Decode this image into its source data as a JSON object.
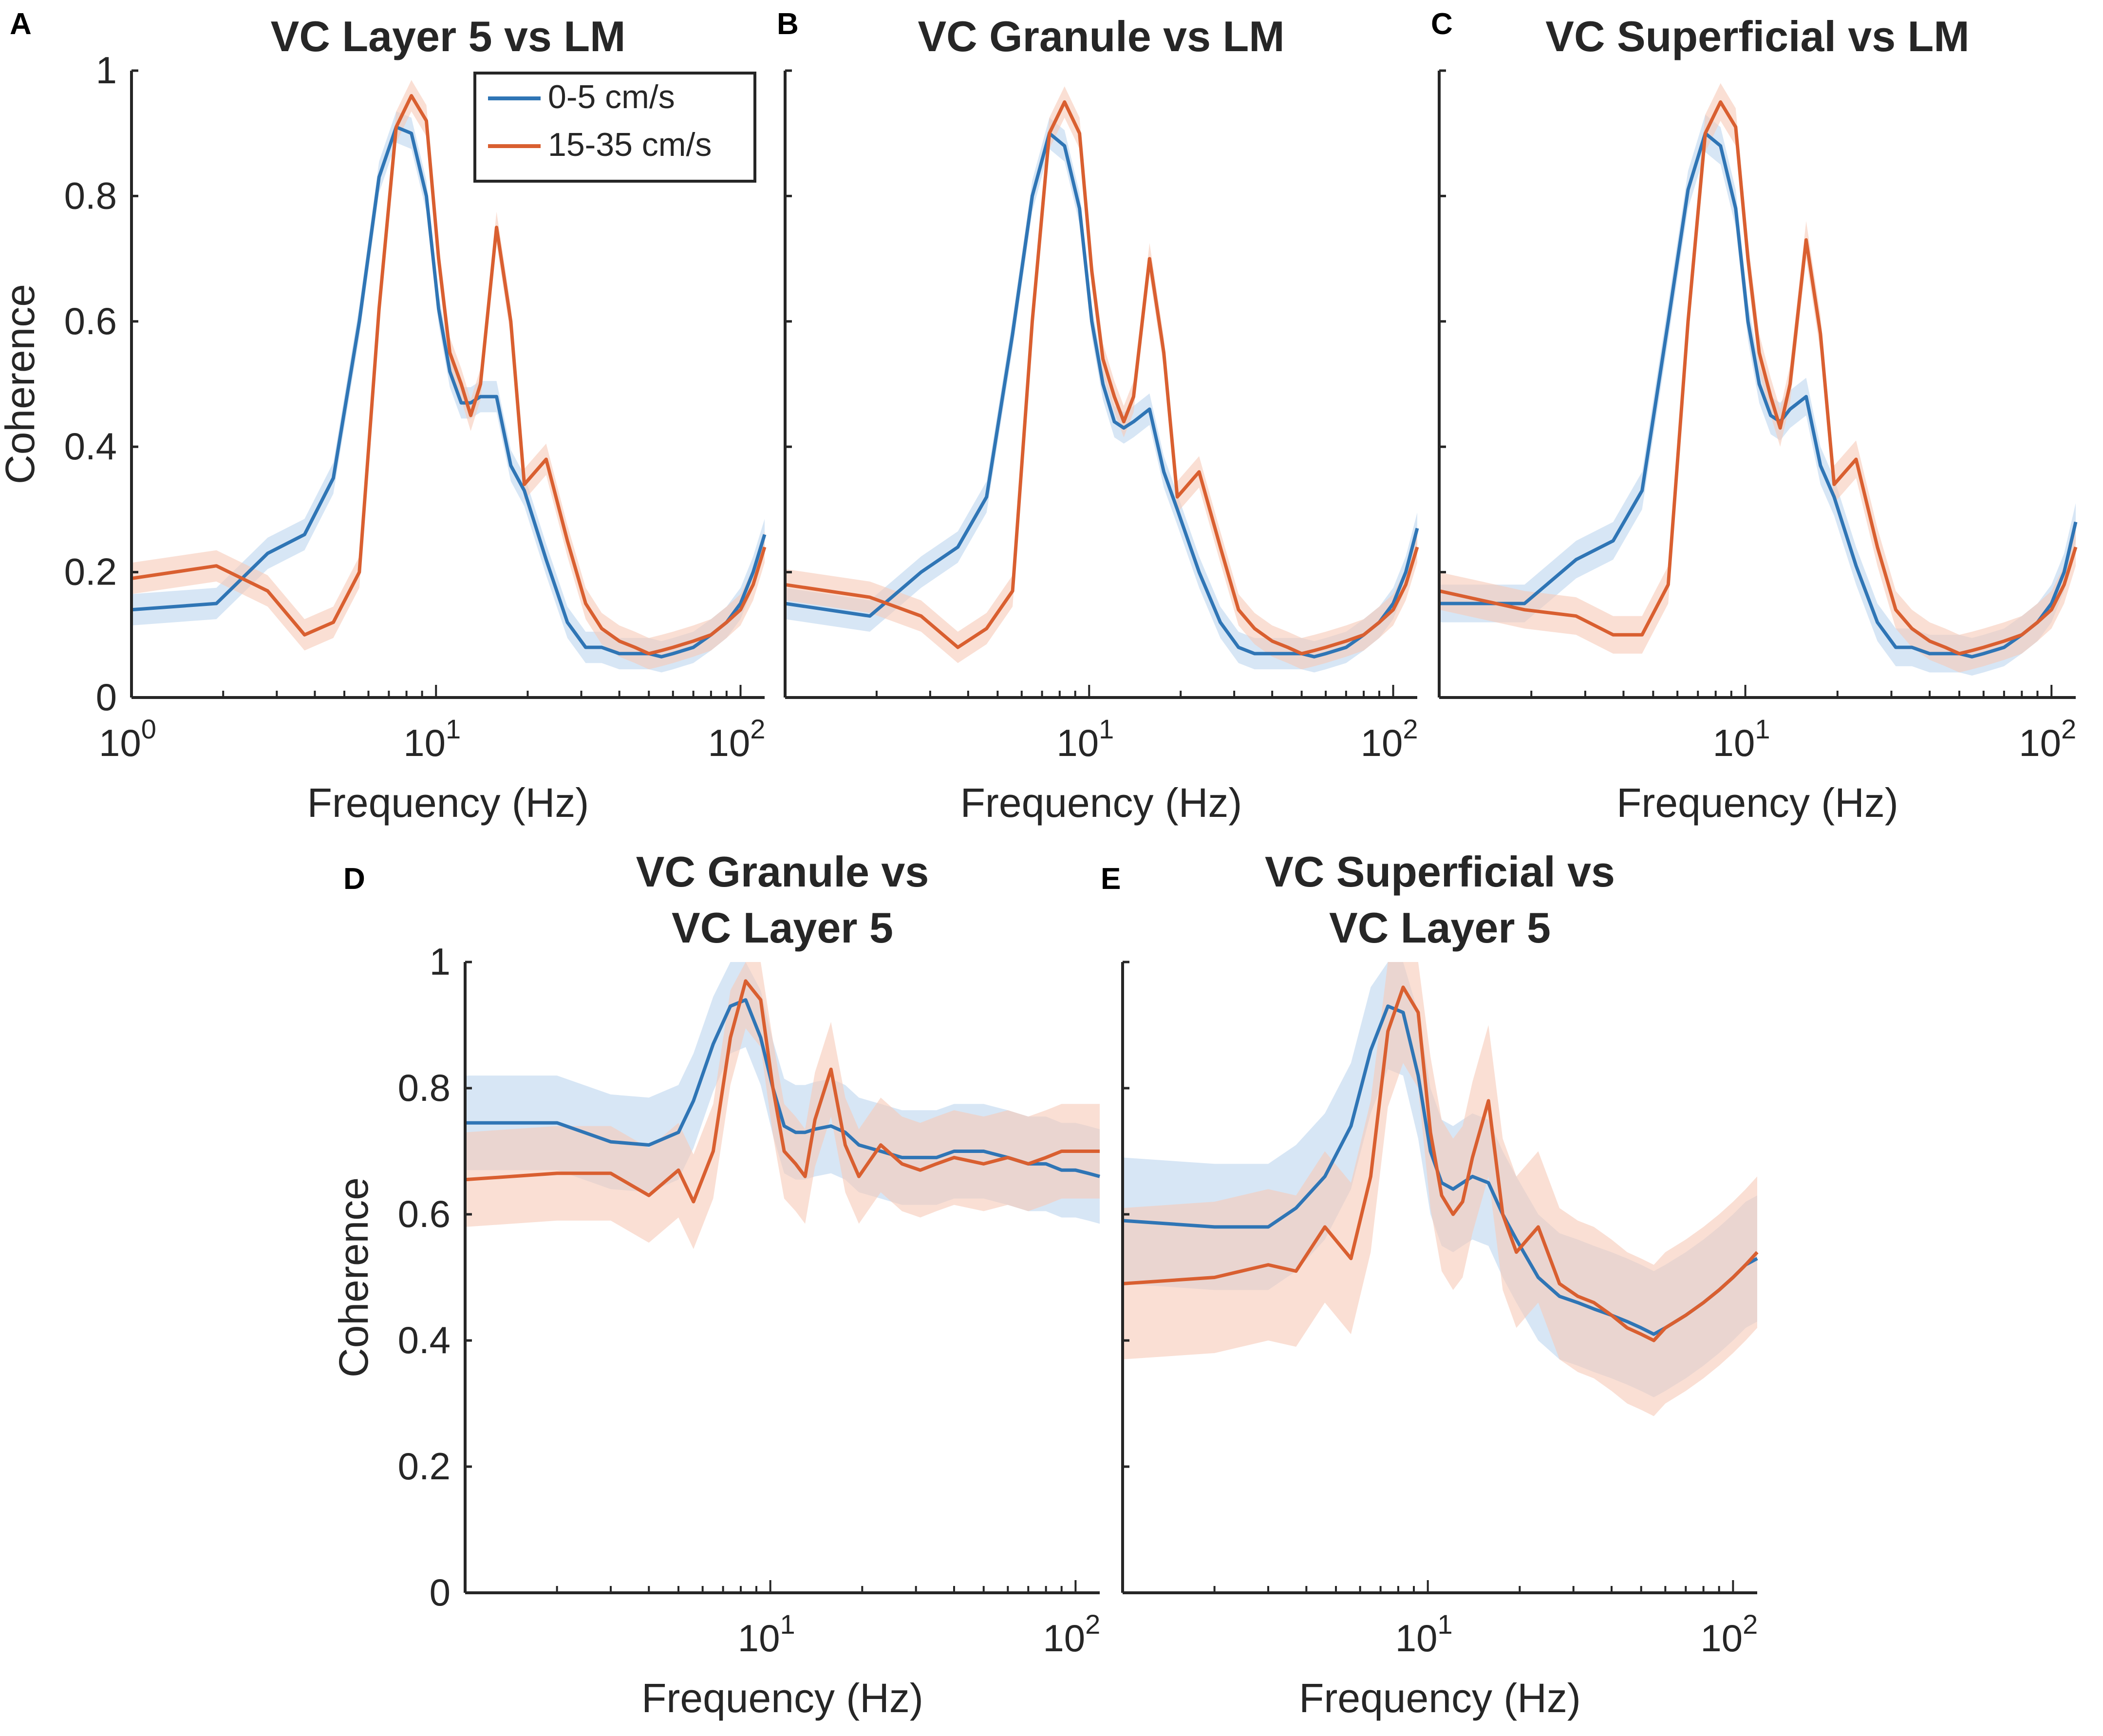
{
  "colors": {
    "series_0_5": "#2f75b5",
    "series_15_35": "#d95f30",
    "band_0_5": "#bcd6ee",
    "band_15_35": "#f7c9b8",
    "axis": "#262626"
  },
  "legend": {
    "items": [
      "0-5 cm/s",
      "15-35 cm/s"
    ]
  },
  "chart_data": [
    {
      "panel": "A",
      "type": "line",
      "title": "VC Layer 5 vs LM",
      "xlabel": "Frequency (Hz)",
      "ylabel": "Coherence",
      "xscale": "log",
      "xlim": [
        1,
        120
      ],
      "ylim": [
        0,
        1
      ],
      "xticks": [
        {
          "base": "10",
          "exp": "0"
        },
        {
          "base": "10",
          "exp": "1"
        },
        {
          "base": "10",
          "exp": "2"
        }
      ],
      "yticks": [
        "0",
        "0.2",
        "0.4",
        "0.6",
        "0.8",
        "1"
      ],
      "series": [
        {
          "name": "0-5 cm/s",
          "x": [
            1,
            1.9,
            2.8,
            3.7,
            4.6,
            5.6,
            6.5,
            7.4,
            8.3,
            9.3,
            10.2,
            11.1,
            12.1,
            13,
            14,
            15.8,
            17.6,
            19.5,
            23,
            27,
            31,
            35,
            40,
            45,
            50,
            55,
            60,
            70,
            80,
            90,
            100,
            110,
            120
          ],
          "y": [
            0.14,
            0.15,
            0.23,
            0.26,
            0.35,
            0.6,
            0.83,
            0.91,
            0.9,
            0.8,
            0.62,
            0.52,
            0.47,
            0.47,
            0.48,
            0.48,
            0.37,
            0.33,
            0.22,
            0.12,
            0.08,
            0.08,
            0.07,
            0.07,
            0.07,
            0.065,
            0.07,
            0.08,
            0.1,
            0.12,
            0.15,
            0.2,
            0.26
          ],
          "band": 0.025
        },
        {
          "name": "15-35 cm/s",
          "x": [
            1,
            1.9,
            2.8,
            3.7,
            4.6,
            5.6,
            6.5,
            7.4,
            8.3,
            9.3,
            10.2,
            11.1,
            12.1,
            13,
            14,
            15.8,
            17.6,
            19.5,
            23,
            27,
            31,
            35,
            40,
            45,
            50,
            55,
            60,
            70,
            80,
            90,
            100,
            110,
            120
          ],
          "y": [
            0.19,
            0.21,
            0.17,
            0.1,
            0.12,
            0.2,
            0.62,
            0.91,
            0.96,
            0.92,
            0.7,
            0.55,
            0.5,
            0.45,
            0.5,
            0.75,
            0.6,
            0.34,
            0.38,
            0.25,
            0.15,
            0.11,
            0.09,
            0.08,
            0.07,
            0.075,
            0.08,
            0.09,
            0.1,
            0.12,
            0.14,
            0.18,
            0.24
          ],
          "band": 0.025
        }
      ]
    },
    {
      "panel": "B",
      "type": "line",
      "title": "VC Granule vs LM",
      "xlabel": "Frequency (Hz)",
      "ylabel": "",
      "xscale": "log",
      "xlim": [
        1,
        120
      ],
      "ylim": [
        0,
        1
      ],
      "xticks": [
        {
          "base": "10",
          "exp": "1"
        },
        {
          "base": "10",
          "exp": "2"
        }
      ],
      "yticks": [],
      "series": [
        {
          "name": "0-5 cm/s",
          "x": [
            1,
            1.9,
            2.8,
            3.7,
            4.6,
            5.6,
            6.5,
            7.4,
            8.3,
            9.3,
            10.2,
            11.1,
            12.1,
            13,
            14,
            15.8,
            17.6,
            19.5,
            23,
            27,
            31,
            35,
            40,
            45,
            50,
            55,
            60,
            70,
            80,
            90,
            100,
            110,
            120
          ],
          "y": [
            0.15,
            0.13,
            0.2,
            0.24,
            0.32,
            0.58,
            0.8,
            0.9,
            0.88,
            0.78,
            0.6,
            0.5,
            0.44,
            0.43,
            0.44,
            0.46,
            0.36,
            0.3,
            0.2,
            0.12,
            0.08,
            0.07,
            0.07,
            0.07,
            0.07,
            0.065,
            0.07,
            0.08,
            0.1,
            0.12,
            0.15,
            0.2,
            0.27
          ],
          "band": 0.025
        },
        {
          "name": "15-35 cm/s",
          "x": [
            1,
            1.9,
            2.8,
            3.7,
            4.6,
            5.6,
            6.5,
            7.4,
            8.3,
            9.3,
            10.2,
            11.1,
            12.1,
            13,
            14,
            15.8,
            17.6,
            19.5,
            23,
            27,
            31,
            35,
            40,
            45,
            50,
            55,
            60,
            70,
            80,
            90,
            100,
            110,
            120
          ],
          "y": [
            0.18,
            0.16,
            0.13,
            0.08,
            0.11,
            0.17,
            0.6,
            0.9,
            0.95,
            0.9,
            0.68,
            0.54,
            0.48,
            0.44,
            0.48,
            0.7,
            0.55,
            0.32,
            0.36,
            0.24,
            0.14,
            0.11,
            0.09,
            0.08,
            0.07,
            0.075,
            0.08,
            0.09,
            0.1,
            0.12,
            0.14,
            0.18,
            0.24
          ],
          "band": 0.025
        }
      ]
    },
    {
      "panel": "C",
      "type": "line",
      "title": "VC Superficial vs LM",
      "xlabel": "Frequency (Hz)",
      "ylabel": "",
      "xscale": "log",
      "xlim": [
        1,
        120
      ],
      "ylim": [
        0,
        1
      ],
      "xticks": [
        {
          "base": "10",
          "exp": "1"
        },
        {
          "base": "10",
          "exp": "2"
        }
      ],
      "yticks": [],
      "series": [
        {
          "name": "0-5 cm/s",
          "x": [
            1,
            1.9,
            2.8,
            3.7,
            4.6,
            5.6,
            6.5,
            7.4,
            8.3,
            9.3,
            10.2,
            11.1,
            12.1,
            13,
            14,
            15.8,
            17.6,
            19.5,
            23,
            27,
            31,
            35,
            40,
            45,
            50,
            55,
            60,
            70,
            80,
            90,
            100,
            110,
            120
          ],
          "y": [
            0.15,
            0.15,
            0.22,
            0.25,
            0.33,
            0.6,
            0.81,
            0.9,
            0.88,
            0.78,
            0.6,
            0.5,
            0.45,
            0.44,
            0.46,
            0.48,
            0.37,
            0.32,
            0.21,
            0.12,
            0.08,
            0.08,
            0.07,
            0.07,
            0.07,
            0.065,
            0.07,
            0.08,
            0.1,
            0.12,
            0.15,
            0.2,
            0.28
          ],
          "band": 0.03
        },
        {
          "name": "15-35 cm/s",
          "x": [
            1,
            1.9,
            2.8,
            3.7,
            4.6,
            5.6,
            6.5,
            7.4,
            8.3,
            9.3,
            10.2,
            11.1,
            12.1,
            13,
            14,
            15.8,
            17.6,
            19.5,
            23,
            27,
            31,
            35,
            40,
            45,
            50,
            55,
            60,
            70,
            80,
            90,
            100,
            110,
            120
          ],
          "y": [
            0.17,
            0.14,
            0.13,
            0.1,
            0.1,
            0.18,
            0.6,
            0.9,
            0.95,
            0.91,
            0.7,
            0.55,
            0.48,
            0.43,
            0.5,
            0.73,
            0.58,
            0.34,
            0.38,
            0.24,
            0.14,
            0.11,
            0.09,
            0.08,
            0.07,
            0.075,
            0.08,
            0.09,
            0.1,
            0.12,
            0.14,
            0.18,
            0.24
          ],
          "band": 0.03
        }
      ]
    },
    {
      "panel": "D",
      "type": "line",
      "title": [
        "VC Granule vs",
        "VC Layer 5"
      ],
      "xlabel": "Frequency (Hz)",
      "ylabel": "Coherence",
      "xscale": "log",
      "xlim": [
        1,
        120
      ],
      "ylim": [
        0,
        1
      ],
      "xticks": [
        {
          "base": "10",
          "exp": "1"
        },
        {
          "base": "10",
          "exp": "2"
        }
      ],
      "yticks": [
        "0",
        "0.2",
        "0.4",
        "0.6",
        "0.8",
        "1"
      ],
      "series": [
        {
          "name": "0-5 cm/s",
          "x": [
            1,
            2,
            3,
            4,
            5,
            5.6,
            6.5,
            7.4,
            8.3,
            9.3,
            10.2,
            11.1,
            12.1,
            13,
            14,
            15.8,
            17.6,
            19.5,
            23,
            27,
            31,
            35,
            40,
            50,
            60,
            70,
            80,
            90,
            100,
            110,
            120
          ],
          "y": [
            0.745,
            0.745,
            0.715,
            0.71,
            0.73,
            0.78,
            0.87,
            0.93,
            0.94,
            0.88,
            0.8,
            0.74,
            0.73,
            0.73,
            0.735,
            0.74,
            0.73,
            0.71,
            0.7,
            0.69,
            0.69,
            0.69,
            0.7,
            0.7,
            0.69,
            0.68,
            0.68,
            0.67,
            0.67,
            0.665,
            0.66
          ],
          "band": 0.075
        },
        {
          "name": "15-35 cm/s",
          "x": [
            1,
            2,
            3,
            4,
            5,
            5.6,
            6.5,
            7.4,
            8.3,
            9.3,
            10.2,
            11.1,
            12.1,
            13,
            14,
            15.8,
            17.6,
            19.5,
            23,
            27,
            31,
            35,
            40,
            50,
            60,
            70,
            80,
            90,
            100,
            110,
            120
          ],
          "y": [
            0.655,
            0.665,
            0.665,
            0.63,
            0.67,
            0.62,
            0.7,
            0.88,
            0.97,
            0.94,
            0.8,
            0.7,
            0.68,
            0.66,
            0.75,
            0.83,
            0.71,
            0.66,
            0.71,
            0.68,
            0.67,
            0.68,
            0.69,
            0.68,
            0.69,
            0.68,
            0.69,
            0.7,
            0.7,
            0.7,
            0.7
          ],
          "band": 0.075
        }
      ]
    },
    {
      "panel": "E",
      "type": "line",
      "title": [
        "VC Superficial vs",
        "VC Layer 5"
      ],
      "xlabel": "Frequency (Hz)",
      "ylabel": "",
      "xscale": "log",
      "xlim": [
        1,
        120
      ],
      "ylim": [
        0,
        1
      ],
      "xticks": [
        {
          "base": "10",
          "exp": "1"
        },
        {
          "base": "10",
          "exp": "2"
        }
      ],
      "yticks": [],
      "series": [
        {
          "name": "0-5 cm/s",
          "x": [
            1,
            2,
            3,
            3.7,
            4.6,
            5.6,
            6.5,
            7.4,
            8.3,
            9.3,
            10.2,
            11.1,
            12.1,
            13,
            14,
            15.8,
            17.6,
            19.5,
            23,
            27,
            31,
            35,
            40,
            45,
            50,
            55,
            60,
            70,
            80,
            90,
            100,
            110,
            120
          ],
          "y": [
            0.59,
            0.58,
            0.58,
            0.61,
            0.66,
            0.74,
            0.86,
            0.93,
            0.92,
            0.82,
            0.7,
            0.65,
            0.64,
            0.65,
            0.66,
            0.65,
            0.6,
            0.56,
            0.5,
            0.47,
            0.46,
            0.45,
            0.44,
            0.43,
            0.42,
            0.41,
            0.42,
            0.44,
            0.46,
            0.48,
            0.5,
            0.52,
            0.53
          ],
          "band": 0.1
        },
        {
          "name": "15-35 cm/s",
          "x": [
            1,
            2,
            3,
            3.7,
            4.6,
            5.6,
            6.5,
            7.4,
            8.3,
            9.3,
            10.2,
            11.1,
            12.1,
            13,
            14,
            15.8,
            17.6,
            19.5,
            23,
            27,
            31,
            35,
            40,
            45,
            50,
            55,
            60,
            70,
            80,
            90,
            100,
            110,
            120
          ],
          "y": [
            0.49,
            0.5,
            0.52,
            0.51,
            0.58,
            0.53,
            0.66,
            0.89,
            0.96,
            0.92,
            0.73,
            0.63,
            0.6,
            0.62,
            0.69,
            0.78,
            0.6,
            0.54,
            0.58,
            0.49,
            0.47,
            0.46,
            0.44,
            0.42,
            0.41,
            0.4,
            0.42,
            0.44,
            0.46,
            0.48,
            0.5,
            0.52,
            0.54
          ],
          "band": 0.12
        }
      ]
    }
  ]
}
